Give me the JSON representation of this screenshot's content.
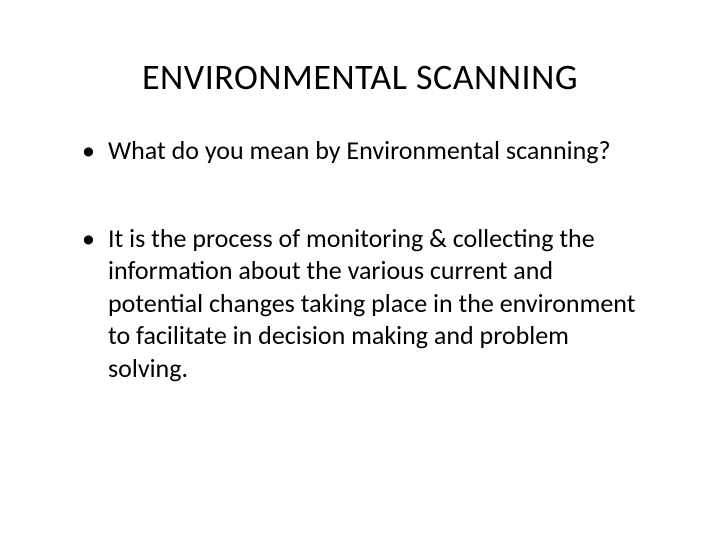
{
  "slide": {
    "title": "ENVIRONMENTAL SCANNING",
    "bullets": [
      "What do you mean by Environmental scanning?",
      "It is the process of monitoring & collecting the information about the various current and potential changes taking place in the environment to facilitate in decision making and problem solving."
    ]
  },
  "styles": {
    "background_color": "#ffffff",
    "text_color": "#000000",
    "title_fontsize": 36,
    "body_fontsize": 26,
    "font_family": "Calibri"
  }
}
